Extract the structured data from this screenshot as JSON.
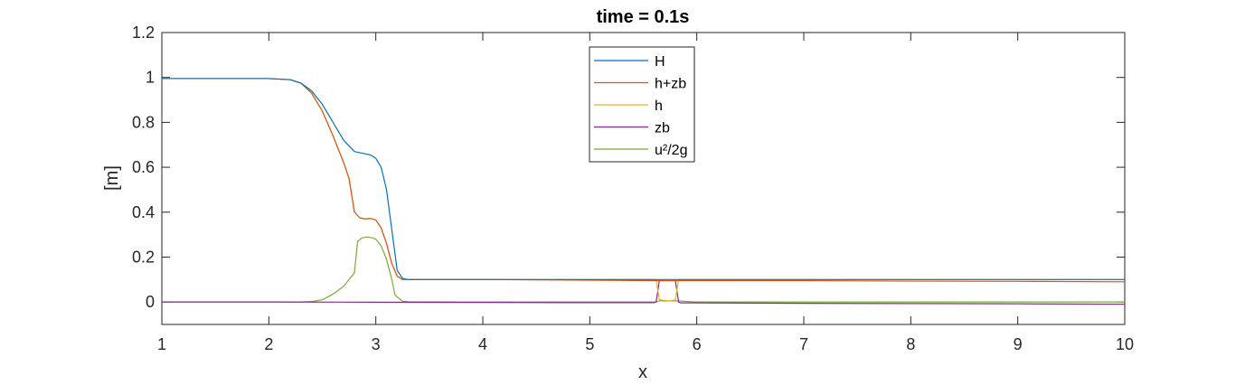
{
  "chart_data": {
    "type": "line",
    "title": "time = 0.1s",
    "xlabel": "x",
    "ylabel": "[m]",
    "xlim": [
      1,
      10
    ],
    "ylim": [
      -0.1,
      1.2
    ],
    "xticks": [
      1,
      2,
      3,
      4,
      5,
      6,
      7,
      8,
      9,
      10
    ],
    "yticks": [
      0,
      0.2,
      0.4,
      0.6,
      0.8,
      1,
      1.2
    ],
    "grid": false,
    "legend_position": "top-center",
    "series": [
      {
        "name": "H",
        "color": "#0072BD",
        "x": [
          1,
          2,
          2.2,
          2.3,
          2.4,
          2.5,
          2.6,
          2.7,
          2.8,
          2.9,
          2.95,
          3.0,
          3.05,
          3.1,
          3.15,
          3.2,
          3.25,
          3.3,
          4,
          5,
          5.6,
          5.65,
          5.8,
          5.85,
          6,
          7,
          8,
          9,
          10
        ],
        "y": [
          0.995,
          0.995,
          0.99,
          0.975,
          0.94,
          0.88,
          0.8,
          0.72,
          0.67,
          0.66,
          0.655,
          0.64,
          0.6,
          0.5,
          0.32,
          0.14,
          0.105,
          0.1,
          0.1,
          0.1,
          0.1,
          0.1,
          0.1,
          0.1,
          0.1,
          0.1,
          0.1,
          0.1,
          0.1
        ]
      },
      {
        "name": "h+zb",
        "color": "#D95319",
        "x": [
          1,
          2,
          2.2,
          2.3,
          2.4,
          2.5,
          2.6,
          2.7,
          2.75,
          2.8,
          2.83,
          2.85,
          2.9,
          2.95,
          3.0,
          3.05,
          3.1,
          3.15,
          3.2,
          3.25,
          3.3,
          4,
          5,
          5.6,
          5.65,
          5.8,
          5.85,
          6,
          7,
          8,
          9,
          10
        ],
        "y": [
          0.995,
          0.995,
          0.99,
          0.975,
          0.93,
          0.85,
          0.74,
          0.62,
          0.55,
          0.4,
          0.385,
          0.375,
          0.37,
          0.372,
          0.365,
          0.33,
          0.26,
          0.17,
          0.115,
          0.1,
          0.1,
          0.1,
          0.097,
          0.095,
          0.095,
          0.095,
          0.095,
          0.095,
          0.095,
          0.093,
          0.092,
          0.09
        ]
      },
      {
        "name": "h",
        "color": "#EDB120",
        "x": [
          1,
          2,
          2.2,
          2.3,
          2.4,
          2.5,
          2.6,
          2.7,
          2.75,
          2.8,
          2.83,
          2.85,
          2.9,
          2.95,
          3.0,
          3.05,
          3.1,
          3.15,
          3.2,
          3.25,
          3.3,
          4,
          5,
          5.6,
          5.62,
          5.65,
          5.75,
          5.8,
          5.83,
          6,
          7,
          8,
          9,
          10
        ],
        "y": [
          0.995,
          0.995,
          0.99,
          0.975,
          0.93,
          0.85,
          0.74,
          0.62,
          0.55,
          0.4,
          0.385,
          0.375,
          0.37,
          0.372,
          0.365,
          0.33,
          0.26,
          0.17,
          0.115,
          0.1,
          0.1,
          0.1,
          0.1,
          0.1,
          0.1,
          0.01,
          0.005,
          0.01,
          0.1,
          0.1,
          0.1,
          0.1,
          0.1,
          0.1
        ]
      },
      {
        "name": "zb",
        "color": "#7E2F8E",
        "x": [
          1,
          2,
          3,
          4,
          5,
          5.6,
          5.62,
          5.65,
          5.8,
          5.83,
          5.85,
          6,
          7,
          8,
          9,
          10
        ],
        "y": [
          0,
          0,
          -0.001,
          -0.002,
          -0.003,
          -0.003,
          0.0,
          0.095,
          0.095,
          0.0,
          -0.004,
          -0.004,
          -0.006,
          -0.007,
          -0.008,
          -0.01
        ]
      },
      {
        "name": "u²/2g",
        "color": "#77AC30",
        "x": [
          1,
          2,
          2.3,
          2.4,
          2.5,
          2.6,
          2.7,
          2.75,
          2.8,
          2.83,
          2.87,
          2.92,
          2.97,
          3.0,
          3.05,
          3.1,
          3.15,
          3.18,
          3.25,
          3.3,
          4,
          5,
          5.6,
          5.65,
          5.8,
          6,
          7,
          8,
          9,
          10
        ],
        "y": [
          0,
          0,
          0.0,
          0.002,
          0.01,
          0.035,
          0.07,
          0.1,
          0.13,
          0.27,
          0.285,
          0.29,
          0.285,
          0.28,
          0.25,
          0.19,
          0.1,
          0.03,
          0.003,
          0.001,
          0.0,
          0.0,
          0.0,
          0.005,
          0.005,
          0.0,
          0.0,
          0.0,
          0.0,
          0.0
        ]
      }
    ]
  }
}
